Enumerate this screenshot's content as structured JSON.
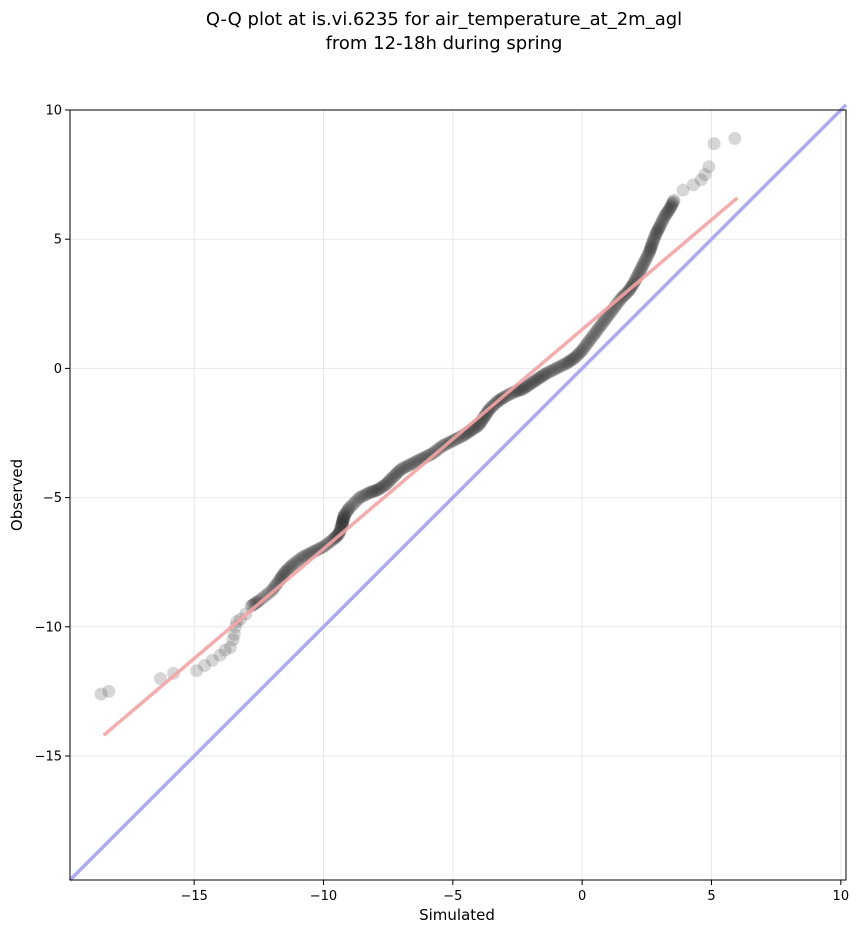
{
  "chart_data": {
    "type": "scatter",
    "title_line1": "Q-Q plot at is.vi.6235 for air_temperature_at_2m_agl",
    "title_line2": "from 12-18h during spring",
    "xlabel": "Simulated",
    "ylabel": "Observed",
    "xlim": [
      -19.8,
      10.2
    ],
    "ylim": [
      -19.8,
      10.0
    ],
    "xticks": [
      -15,
      -10,
      -5,
      0,
      5,
      10
    ],
    "yticks": [
      -15,
      -10,
      -5,
      0,
      5,
      10
    ],
    "xtick_labels": [
      "−15",
      "−10",
      "−5",
      "0",
      "5",
      "10"
    ],
    "ytick_labels": [
      "−15",
      "−10",
      "−5",
      "0",
      "5",
      "10"
    ],
    "grid": true,
    "colors": {
      "points": "#333333",
      "fit_line": "#f4a3a3",
      "identity_line": "#aaaaf5",
      "grid": "#e8e8e8"
    },
    "fit_line": {
      "x": [
        -18.5,
        6.0
      ],
      "y": [
        -14.2,
        6.6
      ]
    },
    "identity_line": {
      "x": [
        -19.8,
        10.2
      ],
      "y": [
        -19.8,
        10.2
      ]
    },
    "quantile_curve": [
      [
        -18.6,
        -12.6
      ],
      [
        -18.3,
        -12.5
      ],
      [
        -16.3,
        -12.0
      ],
      [
        -15.8,
        -11.8
      ],
      [
        -14.9,
        -11.7
      ],
      [
        -14.6,
        -11.5
      ],
      [
        -14.3,
        -11.3
      ],
      [
        -14.0,
        -11.1
      ],
      [
        -13.8,
        -10.9
      ],
      [
        -13.6,
        -10.8
      ],
      [
        -13.5,
        -10.5
      ],
      [
        -13.45,
        -10.3
      ],
      [
        -13.4,
        -10.0
      ],
      [
        -13.35,
        -9.8
      ],
      [
        -13.2,
        -9.7
      ],
      [
        -13.0,
        -9.5
      ],
      [
        -12.8,
        -9.2
      ],
      [
        -12.5,
        -9.0
      ],
      [
        -12.0,
        -8.6
      ],
      [
        -11.7,
        -8.2
      ],
      [
        -11.5,
        -7.9
      ],
      [
        -11.2,
        -7.6
      ],
      [
        -10.8,
        -7.3
      ],
      [
        -10.4,
        -7.1
      ],
      [
        -10.0,
        -6.9
      ],
      [
        -9.6,
        -6.6
      ],
      [
        -9.4,
        -6.4
      ],
      [
        -9.3,
        -6.1
      ],
      [
        -9.25,
        -5.9
      ],
      [
        -9.2,
        -5.7
      ],
      [
        -9.0,
        -5.4
      ],
      [
        -8.6,
        -5.0
      ],
      [
        -8.2,
        -4.8
      ],
      [
        -7.9,
        -4.7
      ],
      [
        -7.6,
        -4.5
      ],
      [
        -7.3,
        -4.2
      ],
      [
        -7.0,
        -3.9
      ],
      [
        -6.6,
        -3.7
      ],
      [
        -6.2,
        -3.5
      ],
      [
        -5.8,
        -3.3
      ],
      [
        -5.4,
        -3.0
      ],
      [
        -5.0,
        -2.8
      ],
      [
        -4.6,
        -2.6
      ],
      [
        -4.3,
        -2.4
      ],
      [
        -4.0,
        -2.2
      ],
      [
        -3.8,
        -1.9
      ],
      [
        -3.6,
        -1.6
      ],
      [
        -3.3,
        -1.3
      ],
      [
        -3.0,
        -1.1
      ],
      [
        -2.6,
        -0.9
      ],
      [
        -2.3,
        -0.8
      ],
      [
        -2.0,
        -0.6
      ],
      [
        -1.7,
        -0.4
      ],
      [
        -1.4,
        -0.2
      ],
      [
        -1.0,
        0.0
      ],
      [
        -0.6,
        0.2
      ],
      [
        -0.3,
        0.4
      ],
      [
        0.0,
        0.7
      ],
      [
        0.3,
        1.1
      ],
      [
        0.6,
        1.5
      ],
      [
        0.9,
        1.9
      ],
      [
        1.2,
        2.3
      ],
      [
        1.5,
        2.7
      ],
      [
        1.8,
        3.0
      ],
      [
        2.0,
        3.3
      ],
      [
        2.2,
        3.7
      ],
      [
        2.4,
        4.1
      ],
      [
        2.6,
        4.5
      ],
      [
        2.7,
        4.8
      ],
      [
        2.85,
        5.2
      ],
      [
        3.0,
        5.5
      ],
      [
        3.2,
        5.9
      ],
      [
        3.4,
        6.2
      ],
      [
        3.55,
        6.5
      ],
      [
        3.9,
        6.9
      ],
      [
        4.3,
        7.1
      ],
      [
        4.6,
        7.3
      ],
      [
        4.75,
        7.5
      ],
      [
        4.9,
        7.8
      ],
      [
        5.1,
        8.7
      ],
      [
        5.9,
        8.9
      ]
    ]
  }
}
